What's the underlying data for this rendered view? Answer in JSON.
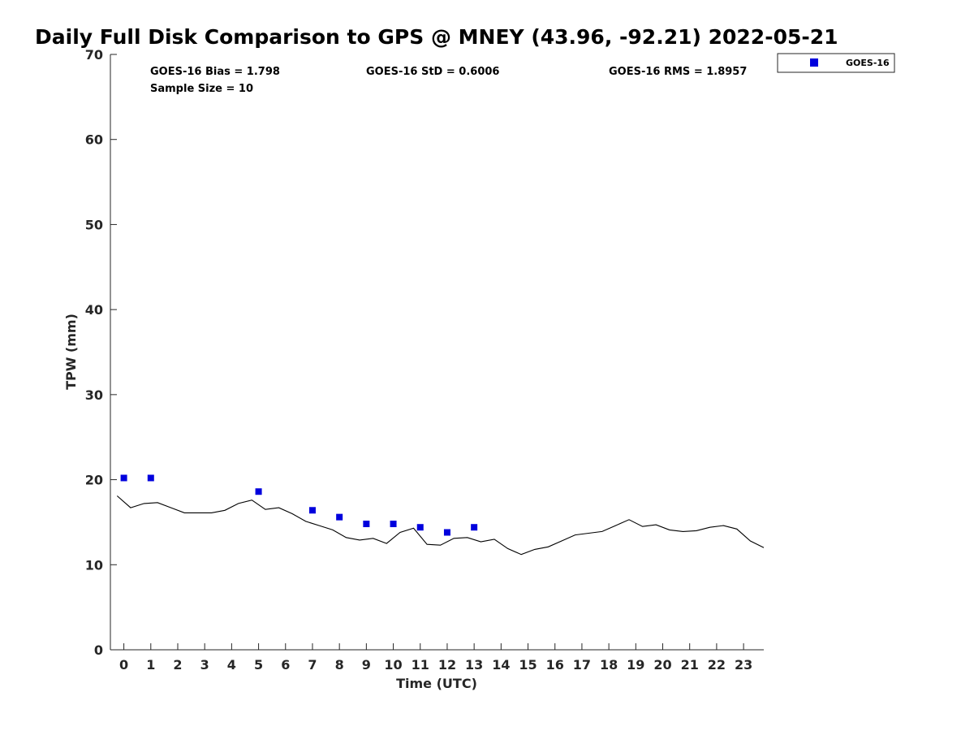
{
  "colors": {
    "goes_marker": "#0000dd",
    "gps_line": "#000000",
    "axis": "#262626"
  },
  "chart_data": {
    "type": "scatter",
    "title": "Daily Full Disk Comparison to GPS @ MNEY (43.96, -92.21) 2022-05-21",
    "xlabel": "Time (UTC)",
    "ylabel": "TPW (mm)",
    "xlim": [
      -0.5,
      23.75
    ],
    "ylim": [
      0,
      70
    ],
    "xticks": [
      0,
      1,
      2,
      3,
      4,
      5,
      6,
      7,
      8,
      9,
      10,
      11,
      12,
      13,
      14,
      15,
      16,
      17,
      18,
      19,
      20,
      21,
      22,
      23
    ],
    "yticks": [
      0,
      10,
      20,
      30,
      40,
      50,
      60,
      70
    ],
    "grid": false,
    "legend_position": "top-right",
    "stats": [
      "GOES-16 Bias = 1.798",
      "GOES-16 StD = 0.6006",
      "GOES-16 RMS = 1.8957",
      "Sample Size = 10"
    ],
    "series": [
      {
        "name": "GOES-16",
        "kind": "scatter",
        "marker": "square",
        "x": [
          0,
          1,
          5,
          7,
          8,
          9,
          10,
          11,
          12,
          13
        ],
        "y": [
          20.2,
          20.2,
          18.6,
          16.4,
          15.6,
          14.8,
          14.8,
          14.4,
          13.8,
          14.4
        ]
      },
      {
        "kind": "line",
        "x": [
          -0.25,
          0.25,
          0.75,
          1.25,
          1.75,
          2.25,
          2.75,
          3.25,
          3.75,
          4.25,
          4.75,
          5.25,
          5.75,
          6.25,
          6.75,
          7.25,
          7.75,
          8.25,
          8.75,
          9.25,
          9.75,
          10.25,
          10.75,
          11.25,
          11.75,
          12.25,
          12.75,
          13.25,
          13.75,
          14.25,
          14.75,
          15.25,
          15.75,
          16.25,
          16.75,
          17.25,
          17.75,
          18.25,
          18.75,
          19.25,
          19.75,
          20.25,
          20.75,
          21.25,
          21.75,
          22.25,
          22.75,
          23.25,
          23.75
        ],
        "y": [
          18.1,
          16.7,
          17.2,
          17.3,
          16.7,
          16.1,
          16.1,
          16.1,
          16.4,
          17.2,
          17.6,
          16.5,
          16.7,
          16.0,
          15.1,
          14.6,
          14.1,
          13.2,
          12.9,
          13.1,
          12.5,
          13.8,
          14.3,
          12.4,
          12.3,
          13.1,
          13.2,
          12.7,
          13.0,
          11.9,
          11.2,
          11.8,
          12.1,
          12.8,
          13.5,
          13.7,
          13.9,
          14.6,
          15.3,
          14.5,
          14.7,
          14.1,
          13.9,
          14.0,
          14.4,
          14.6,
          14.2,
          12.8,
          12.0
        ]
      }
    ]
  }
}
